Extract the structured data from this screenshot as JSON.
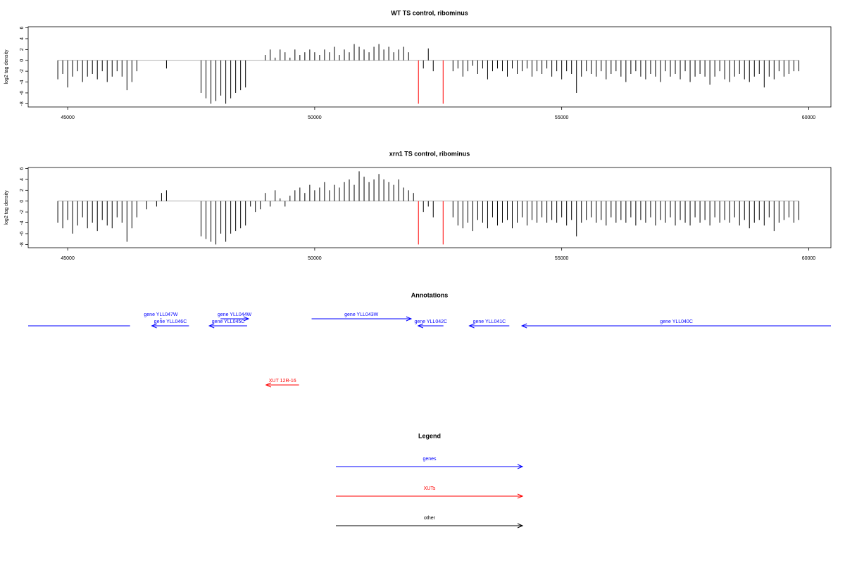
{
  "chart_data": [
    {
      "type": "bar",
      "title": "WT TS control, ribominus",
      "y_label": "log2 tag density",
      "xlim": [
        44200,
        60450
      ],
      "ylim": [
        -8.6,
        6.2
      ],
      "xticks": [
        45000,
        50000,
        55000,
        60000
      ],
      "yticks": [
        -8,
        -6,
        -4,
        -2,
        0,
        2,
        4,
        6
      ],
      "series": [
        {
          "color": "#000000",
          "x": [
            44800,
            44900,
            45000,
            45100,
            45200,
            45300,
            45400,
            45500,
            45600,
            45700,
            45800,
            45900,
            46000,
            46100,
            46200,
            46300,
            46400,
            46500,
            46600,
            46700,
            46800,
            46900,
            47000,
            47100,
            47200,
            47300,
            47400,
            47500,
            47600,
            47700,
            47800,
            47900,
            48000,
            48100,
            48200,
            48300,
            48400,
            48500,
            48600,
            48700,
            48800,
            48900,
            49000,
            49100,
            49200,
            49300,
            49400,
            49500,
            49600,
            49700,
            49800,
            49900,
            50000,
            50100,
            50200,
            50300,
            50400,
            50500,
            50600,
            50700,
            50800,
            50900,
            51000,
            51100,
            51200,
            51300,
            51400,
            51500,
            51600,
            51700,
            51800,
            51900,
            52000,
            52100,
            52200,
            52300,
            52400,
            52500,
            52600,
            52700,
            52800,
            52900,
            53000,
            53100,
            53200,
            53300,
            53400,
            53500,
            53600,
            53700,
            53800,
            53900,
            54000,
            54100,
            54200,
            54300,
            54400,
            54500,
            54600,
            54700,
            54800,
            54900,
            55000,
            55100,
            55200,
            55300,
            55400,
            55500,
            55600,
            55700,
            55800,
            55900,
            56000,
            56100,
            56200,
            56300,
            56400,
            56500,
            56600,
            56700,
            56800,
            56900,
            57000,
            57100,
            57200,
            57300,
            57400,
            57500,
            57600,
            57700,
            57800,
            57900,
            58000,
            58100,
            58200,
            58300,
            58400,
            58500,
            58600,
            58700,
            58800,
            58900,
            59000,
            59100,
            59200,
            59300,
            59400,
            59500,
            59600,
            59700,
            59800
          ],
          "values": [
            -3.5,
            -2.5,
            -5,
            -3,
            -2,
            -4,
            -3,
            -2.5,
            -3.5,
            -2,
            -4,
            -3,
            -2,
            -3,
            -5.5,
            -4,
            -2,
            null,
            null,
            null,
            null,
            null,
            -1.5,
            null,
            null,
            null,
            null,
            null,
            null,
            -6,
            -7,
            -8,
            -7.5,
            -6.5,
            -8,
            -7,
            -6,
            -5.5,
            -5,
            null,
            null,
            null,
            1,
            2,
            0.5,
            2,
            1.5,
            0.5,
            2,
            1,
            1.5,
            2,
            1.5,
            1,
            2,
            1.5,
            2.5,
            1,
            2,
            1.5,
            3,
            2.5,
            2,
            1.5,
            2.5,
            3,
            2,
            2.5,
            1.5,
            2,
            2.5,
            1.5,
            null,
            null,
            -1.5,
            2.2,
            -2,
            null,
            null,
            null,
            -2,
            -1.5,
            -3,
            -2,
            -1,
            -2.5,
            -1.5,
            -3.5,
            -2,
            -1.5,
            -2,
            -3,
            -1.5,
            -2.5,
            -2,
            -1.5,
            -3,
            -2,
            -2.5,
            -1.5,
            -3,
            -2,
            -3.5,
            -2,
            -2.5,
            -6,
            -3,
            -2,
            -2.5,
            -3,
            -2,
            -3.5,
            -2.5,
            -2,
            -3,
            -4,
            -2.5,
            -2,
            -3,
            -3.5,
            -2.5,
            -3,
            -4,
            -2,
            -3,
            -2.5,
            -3.5,
            -2,
            -4,
            -3,
            -2.5,
            -3,
            -4.5,
            -3,
            -2,
            -3.5,
            -4,
            -3,
            -2.5,
            -3.5,
            -4,
            -3,
            -2.5,
            -5,
            -3,
            -3.5,
            -2,
            -3,
            -2.5,
            -2,
            -2
          ]
        },
        {
          "color": "#ff0000",
          "x": [
            52100,
            52600
          ],
          "values": [
            -8,
            -8
          ]
        }
      ]
    },
    {
      "type": "bar",
      "title": "xrn1 TS control, ribominus",
      "y_label": "log2 tag density",
      "xlim": [
        44200,
        60450
      ],
      "ylim": [
        -8.6,
        6.2
      ],
      "xticks": [
        45000,
        50000,
        55000,
        60000
      ],
      "yticks": [
        -8,
        -6,
        -4,
        -2,
        0,
        2,
        4,
        6
      ],
      "series": [
        {
          "color": "#000000",
          "x": [
            44800,
            44900,
            45000,
            45100,
            45200,
            45300,
            45400,
            45500,
            45600,
            45700,
            45800,
            45900,
            46000,
            46100,
            46200,
            46300,
            46400,
            46500,
            46600,
            46700,
            46800,
            46900,
            47000,
            47100,
            47200,
            47300,
            47400,
            47500,
            47600,
            47700,
            47800,
            47900,
            48000,
            48100,
            48200,
            48300,
            48400,
            48500,
            48600,
            48700,
            48800,
            48900,
            49000,
            49100,
            49200,
            49300,
            49400,
            49500,
            49600,
            49700,
            49800,
            49900,
            50000,
            50100,
            50200,
            50300,
            50400,
            50500,
            50600,
            50700,
            50800,
            50900,
            51000,
            51100,
            51200,
            51300,
            51400,
            51500,
            51600,
            51700,
            51800,
            51900,
            52000,
            52100,
            52200,
            52300,
            52400,
            52500,
            52600,
            52700,
            52800,
            52900,
            53000,
            53100,
            53200,
            53300,
            53400,
            53500,
            53600,
            53700,
            53800,
            53900,
            54000,
            54100,
            54200,
            54300,
            54400,
            54500,
            54600,
            54700,
            54800,
            54900,
            55000,
            55100,
            55200,
            55300,
            55400,
            55500,
            55600,
            55700,
            55800,
            55900,
            56000,
            56100,
            56200,
            56300,
            56400,
            56500,
            56600,
            56700,
            56800,
            56900,
            57000,
            57100,
            57200,
            57300,
            57400,
            57500,
            57600,
            57700,
            57800,
            57900,
            58000,
            58100,
            58200,
            58300,
            58400,
            58500,
            58600,
            58700,
            58800,
            58900,
            59000,
            59100,
            59200,
            59300,
            59400,
            59500,
            59600,
            59700,
            59800
          ],
          "values": [
            -4,
            -5,
            -3.5,
            -6,
            -4.5,
            -3,
            -5,
            -4,
            -5.5,
            -3.5,
            -4.5,
            -5,
            -3,
            -4,
            -7.5,
            -5,
            -3,
            null,
            -1.5,
            null,
            -1,
            1.5,
            2,
            null,
            null,
            null,
            null,
            null,
            null,
            -6.5,
            -7,
            -7.5,
            -8,
            -6,
            -7.5,
            -6,
            -5.5,
            -5,
            -4.5,
            -1,
            -2,
            -1.5,
            1.5,
            -1,
            2,
            0.5,
            -1,
            1,
            2,
            2.5,
            1.5,
            3,
            2,
            2.5,
            3.5,
            2,
            3,
            2.5,
            3.5,
            4,
            3,
            5.5,
            4.5,
            3.5,
            4,
            5,
            4,
            3.5,
            3,
            4,
            2.5,
            2,
            1.5,
            null,
            -2,
            -1,
            -3,
            null,
            null,
            null,
            -3,
            -4.5,
            -5,
            -4,
            -5.5,
            -3.5,
            -4,
            -5,
            -3,
            -4.5,
            -4,
            -3.5,
            -5,
            -4,
            -3,
            -4.5,
            -3.5,
            -4,
            -3,
            -4,
            -3.5,
            -4,
            -3,
            -4.5,
            -3.5,
            -6.5,
            -4,
            -3.5,
            -3,
            -4,
            -3.5,
            -4.5,
            -3,
            -4,
            -3.5,
            -4,
            -3,
            -4.5,
            -3.5,
            -4,
            -3,
            -4.5,
            -3.5,
            -4,
            -3,
            -4.5,
            -3.5,
            -4,
            -4.5,
            -3,
            -4,
            -3.5,
            -4.5,
            -3,
            -4,
            -3.5,
            -4,
            -3,
            -4.5,
            -3.5,
            -5,
            -4,
            -3.5,
            -4.5,
            -3,
            -5.5,
            -4,
            -3.5,
            -3,
            -4,
            -3.5
          ]
        },
        {
          "color": "#ff0000",
          "x": [
            52100,
            52600
          ],
          "values": [
            -8,
            -8
          ]
        }
      ]
    }
  ],
  "annotations": {
    "title": "Annotations",
    "features": [
      {
        "start": 44200,
        "end": 46263,
        "strand": "-",
        "color": "#0000ff"
      },
      {
        "label": "gene YLL047W",
        "start": 46873,
        "end": 46900,
        "strand": "+",
        "color": "#0000ff"
      },
      {
        "label": "gene YLL046C",
        "start": 46703,
        "end": 47455,
        "strand": "-",
        "color": "#0000ff"
      },
      {
        "label": "gene YLL044W",
        "start": 48094,
        "end": 48661,
        "strand": "+",
        "color": "#0000ff"
      },
      {
        "label": "gene YLL045C",
        "start": 47866,
        "end": 48633,
        "strand": "-",
        "color": "#0000ff"
      },
      {
        "label": "gene YLL043W",
        "start": 49938,
        "end": 51953,
        "strand": "+",
        "color": "#0000ff"
      },
      {
        "label": "gene YLL042C",
        "start": 52095,
        "end": 52606,
        "strand": "-",
        "color": "#0000ff"
      },
      {
        "label": "gene YLL041C",
        "start": 53131,
        "end": 53940,
        "strand": "-",
        "color": "#0000ff"
      },
      {
        "label": "gene YLL040C",
        "start": 54195,
        "end": 60450,
        "strand": "-",
        "color": "#0000ff"
      },
      {
        "label": "XUT 12R-16",
        "start": 49016,
        "end": 49683,
        "strand": "-",
        "color": "#ff0000"
      }
    ]
  },
  "legend": {
    "title": "Legend",
    "items": [
      {
        "label": "genes",
        "color": "#0000ff"
      },
      {
        "label": "XUTs",
        "color": "#ff0000"
      },
      {
        "label": "other",
        "color": "#000000"
      }
    ]
  }
}
